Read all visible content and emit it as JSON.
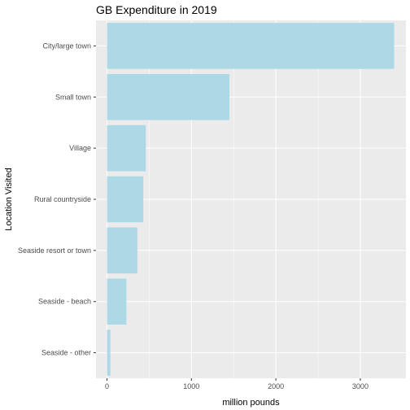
{
  "chart_data": {
    "type": "bar",
    "orientation": "horizontal",
    "title": "GB Expenditure in 2019",
    "xlabel": "million pounds",
    "ylabel": "Location Visited",
    "categories": [
      "City/large town",
      "Small town",
      "Village",
      "Rural countryside",
      "Seaside resort or town",
      "Seaside - beach",
      "Seaside - other"
    ],
    "values": [
      3400,
      1450,
      460,
      430,
      360,
      230,
      40
    ],
    "xlim": [
      -130,
      3540
    ],
    "xticks": [
      0,
      1000,
      2000,
      3000
    ],
    "grid": true,
    "colors": {
      "bar": "#add8e6",
      "panel": "#ebebeb",
      "grid_major": "#ffffff",
      "tick": "#333333"
    }
  }
}
